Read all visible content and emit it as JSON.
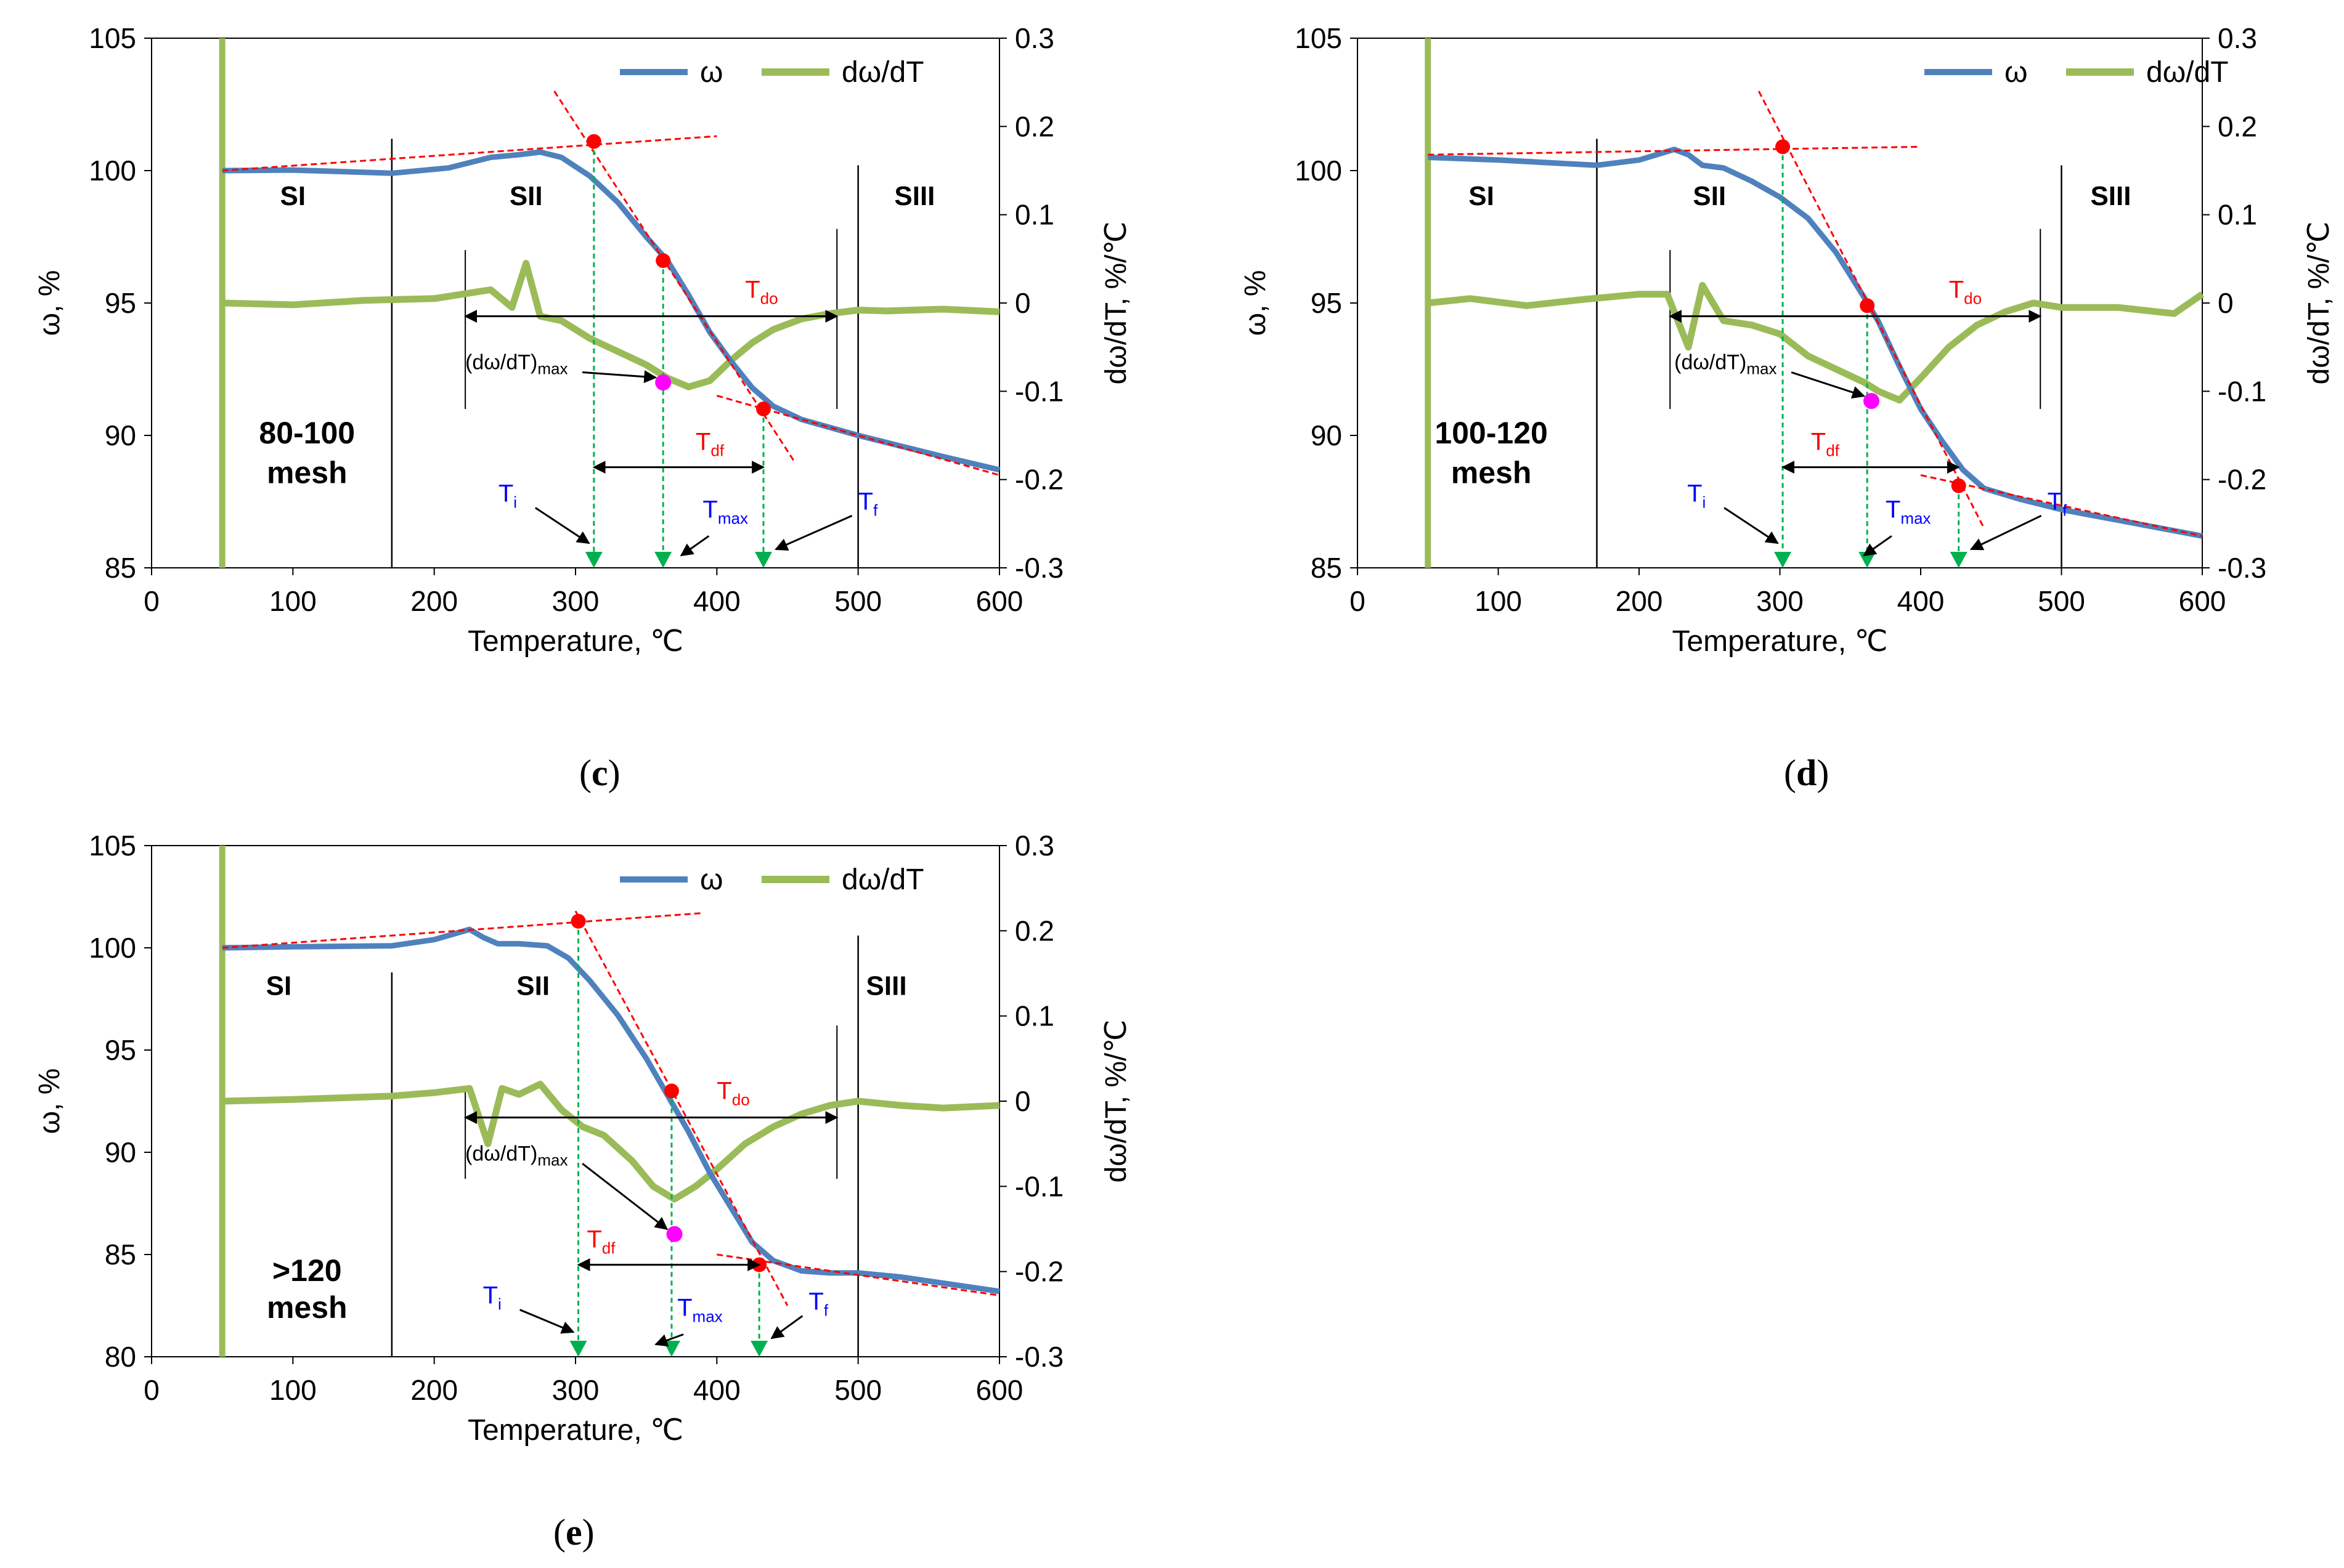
{
  "colors": {
    "omega": "#4f81bd",
    "deriv": "#9bbb59",
    "red": "#ff0000",
    "green": "#00b050",
    "blue": "#0000ff",
    "magenta": "#ff00ff"
  },
  "chart_data": [
    {
      "id": "c",
      "type": "line",
      "caption": "(c)",
      "label_paren_open": "(",
      "label_letter": "c",
      "label_paren_close": ")",
      "mesh_line1": "80-100",
      "mesh_line2": "mesh",
      "xlabel": "Temperature, ℃",
      "ylabel": "ω, %",
      "y2label": "dω/dT, %/℃",
      "xlim": [
        0,
        600
      ],
      "xticks": [
        "0",
        "100",
        "200",
        "300",
        "400",
        "500",
        "600"
      ],
      "ylim": [
        85,
        105
      ],
      "yticks": [
        "85",
        "90",
        "95",
        "100",
        "105"
      ],
      "y2lim": [
        -0.3,
        0.3
      ],
      "y2ticks": [
        "-0.3",
        "-0.2",
        "-0.1",
        "0",
        "0.1",
        "0.2",
        "0.3"
      ],
      "legend": [
        "ω",
        "dω/dT"
      ],
      "stages": [
        "SI",
        "SII",
        "SIII"
      ],
      "stage_x": [
        100,
        265,
        540
      ],
      "stage_y": 98.7,
      "stage_dividers": [
        170,
        500
      ],
      "omega": [
        [
          50,
          100
        ],
        [
          100,
          100.02
        ],
        [
          170,
          99.9
        ],
        [
          210,
          100.1
        ],
        [
          240,
          100.5
        ],
        [
          260,
          100.6
        ],
        [
          275,
          100.7
        ],
        [
          290,
          100.5
        ],
        [
          310,
          99.8
        ],
        [
          330,
          98.8
        ],
        [
          350,
          97.5
        ],
        [
          365,
          96.6
        ],
        [
          380,
          95.3
        ],
        [
          395,
          93.9
        ],
        [
          410,
          92.8
        ],
        [
          425,
          91.8
        ],
        [
          440,
          91.1
        ],
        [
          460,
          90.6
        ],
        [
          480,
          90.3
        ],
        [
          500,
          90.0
        ],
        [
          530,
          89.6
        ],
        [
          560,
          89.2
        ],
        [
          600,
          88.7
        ]
      ],
      "deriv": [
        [
          50,
          0
        ],
        [
          100,
          -0.002
        ],
        [
          150,
          0.003
        ],
        [
          200,
          0.005
        ],
        [
          240,
          0.015
        ],
        [
          255,
          -0.005
        ],
        [
          265,
          0.045
        ],
        [
          275,
          -0.015
        ],
        [
          290,
          -0.02
        ],
        [
          310,
          -0.04
        ],
        [
          330,
          -0.055
        ],
        [
          350,
          -0.07
        ],
        [
          365,
          -0.085
        ],
        [
          380,
          -0.095
        ],
        [
          395,
          -0.088
        ],
        [
          410,
          -0.065
        ],
        [
          425,
          -0.045
        ],
        [
          440,
          -0.03
        ],
        [
          460,
          -0.018
        ],
        [
          480,
          -0.012
        ],
        [
          500,
          -0.008
        ],
        [
          520,
          -0.009
        ],
        [
          560,
          -0.007
        ],
        [
          600,
          -0.01
        ]
      ],
      "onset_guide": [
        [
          50,
          100
        ],
        [
          400,
          101.3
        ]
      ],
      "tangent": [
        [
          285,
          103
        ],
        [
          455,
          89
        ]
      ],
      "final_guide": [
        [
          400,
          91.5
        ],
        [
          600,
          88.5
        ]
      ],
      "points": {
        "Ti": [
          313,
          101.1
        ],
        "Tdo": [
          362,
          96.6
        ],
        "Tf": [
          433,
          91.0
        ],
        "peak": [
          362,
          92.0
        ]
      },
      "Ti": "T",
      "Ti_sub": "i",
      "Tmax": "T",
      "Tmax_sub": "max",
      "Tf": "T",
      "Tf_sub": "f",
      "Tdo": "T",
      "Tdo_sub": "do",
      "Tdf": "T",
      "Tdf_sub": "df",
      "peak_label": "(dω/dT)",
      "peak_label_sub": "max"
    },
    {
      "id": "d",
      "type": "line",
      "caption": "(d)",
      "label_paren_open": "(",
      "label_letter": "d",
      "label_paren_close": ")",
      "mesh_line1": "100-120",
      "mesh_line2": "mesh",
      "xlabel": "Temperature, ℃",
      "ylabel": "ω, %",
      "y2label": "dω/dT, %/℃",
      "xlim": [
        0,
        600
      ],
      "xticks": [
        "0",
        "100",
        "200",
        "300",
        "400",
        "500",
        "600"
      ],
      "ylim": [
        85,
        105
      ],
      "yticks": [
        "85",
        "90",
        "95",
        "100",
        "105"
      ],
      "y2lim": [
        -0.3,
        0.3
      ],
      "y2ticks": [
        "-0.3",
        "-0.2",
        "-0.1",
        "0",
        "0.1",
        "0.2",
        "0.3"
      ],
      "legend": [
        "ω",
        "dω/dT"
      ],
      "stages": [
        "SI",
        "SII",
        "SIII"
      ],
      "stage_x": [
        88,
        250,
        535
      ],
      "stage_y": 98.7,
      "stage_dividers": [
        170,
        500
      ],
      "omega": [
        [
          50,
          100.5
        ],
        [
          100,
          100.4
        ],
        [
          170,
          100.2
        ],
        [
          200,
          100.4
        ],
        [
          225,
          100.8
        ],
        [
          235,
          100.6
        ],
        [
          245,
          100.2
        ],
        [
          260,
          100.1
        ],
        [
          280,
          99.6
        ],
        [
          300,
          99.0
        ],
        [
          320,
          98.2
        ],
        [
          340,
          96.9
        ],
        [
          360,
          95.2
        ],
        [
          370,
          94.3
        ],
        [
          385,
          92.6
        ],
        [
          400,
          91.0
        ],
        [
          415,
          89.8
        ],
        [
          430,
          88.7
        ],
        [
          445,
          88.0
        ],
        [
          470,
          87.6
        ],
        [
          500,
          87.2
        ],
        [
          530,
          86.9
        ],
        [
          560,
          86.6
        ],
        [
          600,
          86.2
        ]
      ],
      "deriv": [
        [
          50,
          0
        ],
        [
          80,
          0.005
        ],
        [
          120,
          -0.003
        ],
        [
          160,
          0.004
        ],
        [
          200,
          0.01
        ],
        [
          220,
          0.01
        ],
        [
          235,
          -0.05
        ],
        [
          245,
          0.02
        ],
        [
          260,
          -0.02
        ],
        [
          280,
          -0.025
        ],
        [
          300,
          -0.035
        ],
        [
          320,
          -0.06
        ],
        [
          340,
          -0.075
        ],
        [
          360,
          -0.09
        ],
        [
          370,
          -0.1
        ],
        [
          385,
          -0.11
        ],
        [
          400,
          -0.085
        ],
        [
          420,
          -0.05
        ],
        [
          440,
          -0.025
        ],
        [
          460,
          -0.01
        ],
        [
          480,
          0
        ],
        [
          500,
          -0.005
        ],
        [
          540,
          -0.005
        ],
        [
          580,
          -0.012
        ],
        [
          600,
          0.01
        ]
      ],
      "onset_guide": [
        [
          50,
          100.6
        ],
        [
          400,
          100.9
        ]
      ],
      "tangent": [
        [
          285,
          103
        ],
        [
          445,
          86.5
        ]
      ],
      "final_guide": [
        [
          400,
          88.5
        ],
        [
          600,
          86.2
        ]
      ],
      "points": {
        "Ti": [
          302,
          100.9
        ],
        "Tdo": [
          362,
          94.9
        ],
        "Tf": [
          427,
          88.1
        ],
        "peak": [
          365,
          91.3
        ]
      },
      "Ti": "T",
      "Ti_sub": "i",
      "Tmax": "T",
      "Tmax_sub": "max",
      "Tf": "T",
      "Tf_sub": "f",
      "Tdo": "T",
      "Tdo_sub": "do",
      "Tdf": "T",
      "Tdf_sub": "df",
      "peak_label": "(dω/dT)",
      "peak_label_sub": "max"
    },
    {
      "id": "e",
      "type": "line",
      "caption": "(e)",
      "label_paren_open": "(",
      "label_letter": "e",
      "label_paren_close": ")",
      "mesh_line1": ">120",
      "mesh_line2": "mesh",
      "xlabel": "Temperature, ℃",
      "ylabel": "ω, %",
      "y2label": "dω/dT, %/℃",
      "xlim": [
        0,
        600
      ],
      "xticks": [
        "0",
        "100",
        "200",
        "300",
        "400",
        "500",
        "600"
      ],
      "ylim": [
        80,
        105
      ],
      "yticks": [
        "80",
        "85",
        "90",
        "95",
        "100",
        "105"
      ],
      "y2lim": [
        -0.3,
        0.3
      ],
      "y2ticks": [
        "-0.3",
        "-0.2",
        "-0.1",
        "0",
        "0.1",
        "0.2",
        "0.3"
      ],
      "legend": [
        "ω",
        "dω/dT"
      ],
      "stages": [
        "SI",
        "SII",
        "SIII"
      ],
      "stage_x": [
        90,
        270,
        520
      ],
      "stage_y": 97.7,
      "stage_dividers": [
        170,
        500
      ],
      "omega": [
        [
          50,
          100
        ],
        [
          100,
          100.05
        ],
        [
          170,
          100.1
        ],
        [
          200,
          100.4
        ],
        [
          225,
          100.9
        ],
        [
          235,
          100.5
        ],
        [
          245,
          100.2
        ],
        [
          260,
          100.2
        ],
        [
          280,
          100.1
        ],
        [
          295,
          99.5
        ],
        [
          310,
          98.4
        ],
        [
          330,
          96.7
        ],
        [
          350,
          94.6
        ],
        [
          365,
          92.8
        ],
        [
          380,
          91.0
        ],
        [
          395,
          89.0
        ],
        [
          410,
          87.3
        ],
        [
          425,
          85.6
        ],
        [
          440,
          84.7
        ],
        [
          460,
          84.2
        ],
        [
          480,
          84.1
        ],
        [
          500,
          84.1
        ],
        [
          530,
          83.9
        ],
        [
          560,
          83.6
        ],
        [
          600,
          83.2
        ]
      ],
      "deriv": [
        [
          50,
          0
        ],
        [
          100,
          0.002
        ],
        [
          170,
          0.006
        ],
        [
          200,
          0.01
        ],
        [
          225,
          0.015
        ],
        [
          238,
          -0.05
        ],
        [
          248,
          0.015
        ],
        [
          260,
          0.008
        ],
        [
          275,
          0.02
        ],
        [
          290,
          -0.01
        ],
        [
          305,
          -0.03
        ],
        [
          320,
          -0.04
        ],
        [
          340,
          -0.07
        ],
        [
          355,
          -0.1
        ],
        [
          370,
          -0.115
        ],
        [
          385,
          -0.1
        ],
        [
          400,
          -0.08
        ],
        [
          420,
          -0.05
        ],
        [
          440,
          -0.03
        ],
        [
          460,
          -0.015
        ],
        [
          480,
          -0.005
        ],
        [
          500,
          0
        ],
        [
          530,
          -0.005
        ],
        [
          560,
          -0.008
        ],
        [
          600,
          -0.005
        ]
      ],
      "onset_guide": [
        [
          50,
          100
        ],
        [
          390,
          101.7
        ]
      ],
      "tangent": [
        [
          300,
          101.8
        ],
        [
          450,
          82.5
        ]
      ],
      "final_guide": [
        [
          400,
          85
        ],
        [
          600,
          83
        ]
      ],
      "points": {
        "Ti": [
          302,
          101.3
        ],
        "Tdo": [
          368,
          93.0
        ],
        "Tf": [
          430,
          84.5
        ],
        "peak": [
          370,
          86.0
        ]
      },
      "Ti": "T",
      "Ti_sub": "i",
      "Tmax": "T",
      "Tmax_sub": "max",
      "Tf": "T",
      "Tf_sub": "f",
      "Tdo": "T",
      "Tdo_sub": "do",
      "Tdf": "T",
      "Tdf_sub": "df",
      "peak_label": "(dω/dT)",
      "peak_label_sub": "max"
    }
  ]
}
